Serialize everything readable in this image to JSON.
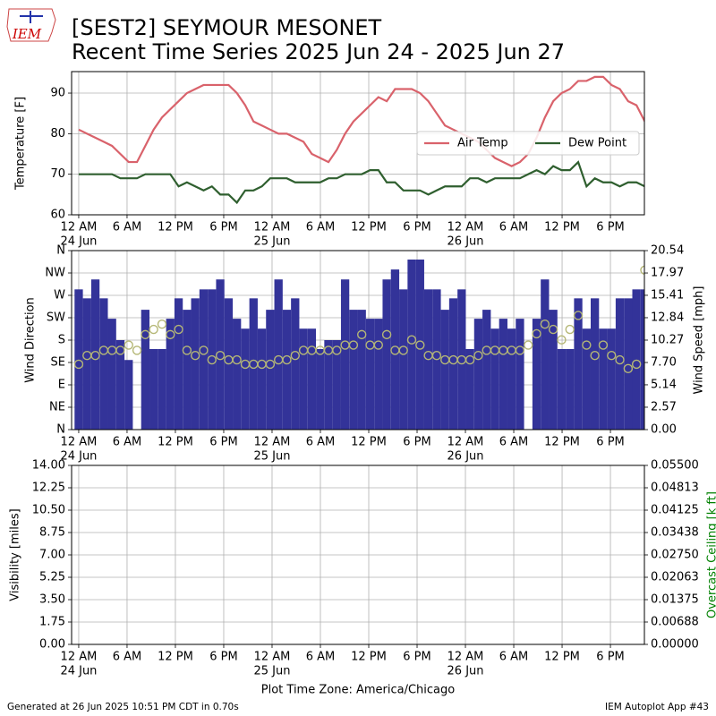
{
  "logo_text": "IEM",
  "title": "[SEST2] SEYMOUR MESONET",
  "subtitle": "Recent Time Series 2025 Jun 24 - 2025 Jun 27",
  "footer_left": "Generated at 26 Jun 2025 10:51 PM CDT in 0.70s",
  "footer_right": "IEM Autoplot App #43",
  "chart_data": [
    {
      "type": "line",
      "x": [
        "2025-06-24T00:00",
        "2025-06-24T01:02",
        "2025-06-24T02:04",
        "2025-06-24T03:06",
        "2025-06-24T04:08",
        "2025-06-24T05:10",
        "2025-06-24T06:12",
        "2025-06-24T07:14",
        "2025-06-24T08:16",
        "2025-06-24T09:18",
        "2025-06-24T10:20",
        "2025-06-24T11:22",
        "2025-06-24T12:24",
        "2025-06-24T13:26",
        "2025-06-24T14:28",
        "2025-06-24T15:30",
        "2025-06-24T16:32",
        "2025-06-24T17:34",
        "2025-06-24T18:36",
        "2025-06-24T19:38",
        "2025-06-24T20:40",
        "2025-06-24T21:42",
        "2025-06-24T22:44",
        "2025-06-24T23:46",
        "2025-06-25T00:48",
        "2025-06-25T01:50",
        "2025-06-25T02:52",
        "2025-06-25T03:54",
        "2025-06-25T04:56",
        "2025-06-25T05:58",
        "2025-06-25T07:00",
        "2025-06-25T08:02",
        "2025-06-25T09:04",
        "2025-06-25T10:06",
        "2025-06-25T11:08",
        "2025-06-25T12:10",
        "2025-06-25T13:12",
        "2025-06-25T14:14",
        "2025-06-25T15:16",
        "2025-06-25T16:18",
        "2025-06-25T17:20",
        "2025-06-25T18:22",
        "2025-06-25T19:24",
        "2025-06-25T20:26",
        "2025-06-25T21:28",
        "2025-06-25T22:30",
        "2025-06-25T23:32",
        "2025-06-26T00:34",
        "2025-06-26T01:36",
        "2025-06-26T02:38",
        "2025-06-26T03:40",
        "2025-06-26T04:42",
        "2025-06-26T05:44",
        "2025-06-26T06:46",
        "2025-06-26T07:48",
        "2025-06-26T08:50",
        "2025-06-26T09:52",
        "2025-06-26T10:54",
        "2025-06-26T11:56",
        "2025-06-26T12:58",
        "2025-06-26T14:00",
        "2025-06-26T15:02",
        "2025-06-26T16:04",
        "2025-06-26T17:06",
        "2025-06-26T18:08",
        "2025-06-26T19:10",
        "2025-06-26T20:12",
        "2025-06-26T21:14",
        "2025-06-26T22:16"
      ],
      "xlim": [
        "2025-06-23T23:07",
        "2025-06-26T22:13"
      ],
      "xticks": [
        {
          "value": "2025-06-24T00:00",
          "label": [
            "12 AM",
            "24 Jun"
          ]
        },
        {
          "value": "2025-06-24T06:00",
          "label": [
            "6 AM"
          ]
        },
        {
          "value": "2025-06-24T12:00",
          "label": [
            "12 PM"
          ]
        },
        {
          "value": "2025-06-24T18:00",
          "label": [
            "6 PM"
          ]
        },
        {
          "value": "2025-06-25T00:00",
          "label": [
            "12 AM",
            "25 Jun"
          ]
        },
        {
          "value": "2025-06-25T06:00",
          "label": [
            "6 AM"
          ]
        },
        {
          "value": "2025-06-25T12:00",
          "label": [
            "12 PM"
          ]
        },
        {
          "value": "2025-06-25T18:00",
          "label": [
            "6 PM"
          ]
        },
        {
          "value": "2025-06-26T00:00",
          "label": [
            "12 AM",
            "26 Jun"
          ]
        },
        {
          "value": "2025-06-26T06:00",
          "label": [
            "6 AM"
          ]
        },
        {
          "value": "2025-06-26T12:00",
          "label": [
            "12 PM"
          ]
        },
        {
          "value": "2025-06-26T18:00",
          "label": [
            "6 PM"
          ]
        }
      ],
      "ylabel": "Temperature [F]",
      "ylim": [
        60,
        95.3
      ],
      "yticks": [
        60,
        70,
        80,
        90
      ],
      "grid": true,
      "legend": "center right",
      "series": [
        {
          "name": "Air Temp",
          "color": "#d9626b",
          "values": [
            81,
            80,
            79,
            78,
            77,
            75,
            73,
            73,
            77,
            81,
            84,
            86,
            88,
            90,
            91,
            92,
            92,
            92,
            92,
            90,
            87,
            83,
            82,
            81,
            80,
            80,
            79,
            78,
            75,
            74,
            73,
            76,
            80,
            83,
            85,
            87,
            89,
            88,
            91,
            91,
            91,
            90,
            88,
            85,
            82,
            81,
            80,
            79,
            78,
            76,
            74,
            73,
            72,
            73,
            75,
            79,
            84,
            88,
            90,
            91,
            93,
            93,
            94,
            94,
            92,
            91,
            88,
            87,
            83
          ]
        },
        {
          "name": "Dew Point",
          "color": "#2f5f2f",
          "values": [
            70,
            70,
            70,
            70,
            70,
            69,
            69,
            69,
            70,
            70,
            70,
            70,
            67,
            68,
            67,
            66,
            67,
            65,
            65,
            63,
            66,
            66,
            67,
            69,
            69,
            69,
            68,
            68,
            68,
            68,
            69,
            69,
            70,
            70,
            70,
            71,
            71,
            68,
            68,
            66,
            66,
            66,
            65,
            66,
            67,
            67,
            67,
            69,
            69,
            68,
            69,
            69,
            69,
            69,
            70,
            71,
            70,
            72,
            71,
            71,
            73,
            67,
            69,
            68,
            68,
            67,
            68,
            68,
            67
          ]
        }
      ]
    },
    {
      "type": "bar",
      "x": [
        "2025-06-24T00:00",
        "2025-06-24T01:02",
        "2025-06-24T02:04",
        "2025-06-24T03:06",
        "2025-06-24T04:08",
        "2025-06-24T05:10",
        "2025-06-24T06:12",
        "2025-06-24T07:14",
        "2025-06-24T08:16",
        "2025-06-24T09:18",
        "2025-06-24T10:20",
        "2025-06-24T11:22",
        "2025-06-24T12:24",
        "2025-06-24T13:26",
        "2025-06-24T14:28",
        "2025-06-24T15:30",
        "2025-06-24T16:32",
        "2025-06-24T17:34",
        "2025-06-24T18:36",
        "2025-06-24T19:38",
        "2025-06-24T20:40",
        "2025-06-24T21:42",
        "2025-06-24T22:44",
        "2025-06-24T23:46",
        "2025-06-25T00:48",
        "2025-06-25T01:50",
        "2025-06-25T02:52",
        "2025-06-25T03:54",
        "2025-06-25T04:56",
        "2025-06-25T05:58",
        "2025-06-25T07:00",
        "2025-06-25T08:02",
        "2025-06-25T09:04",
        "2025-06-25T10:06",
        "2025-06-25T11:08",
        "2025-06-25T12:10",
        "2025-06-25T13:12",
        "2025-06-25T14:14",
        "2025-06-25T15:16",
        "2025-06-25T16:18",
        "2025-06-25T17:20",
        "2025-06-25T18:22",
        "2025-06-25T19:24",
        "2025-06-25T20:26",
        "2025-06-25T21:28",
        "2025-06-25T22:30",
        "2025-06-25T23:32",
        "2025-06-26T00:34",
        "2025-06-26T01:36",
        "2025-06-26T02:38",
        "2025-06-26T03:40",
        "2025-06-26T04:42",
        "2025-06-26T05:44",
        "2025-06-26T06:46",
        "2025-06-26T07:48",
        "2025-06-26T08:50",
        "2025-06-26T09:52",
        "2025-06-26T10:54",
        "2025-06-26T11:56",
        "2025-06-26T12:58",
        "2025-06-26T14:00",
        "2025-06-26T15:02",
        "2025-06-26T16:04",
        "2025-06-26T17:06",
        "2025-06-26T18:08",
        "2025-06-26T19:10",
        "2025-06-26T20:12",
        "2025-06-26T21:14",
        "2025-06-26T22:16"
      ],
      "xlim": [
        "2025-06-23T23:07",
        "2025-06-26T22:13"
      ],
      "xticks": [
        {
          "value": "2025-06-24T00:00",
          "label": [
            "12 AM",
            "24 Jun"
          ]
        },
        {
          "value": "2025-06-24T06:00",
          "label": [
            "6 AM"
          ]
        },
        {
          "value": "2025-06-24T12:00",
          "label": [
            "12 PM"
          ]
        },
        {
          "value": "2025-06-24T18:00",
          "label": [
            "6 PM"
          ]
        },
        {
          "value": "2025-06-25T00:00",
          "label": [
            "12 AM",
            "25 Jun"
          ]
        },
        {
          "value": "2025-06-25T06:00",
          "label": [
            "6 AM"
          ]
        },
        {
          "value": "2025-06-25T12:00",
          "label": [
            "12 PM"
          ]
        },
        {
          "value": "2025-06-25T18:00",
          "label": [
            "6 PM"
          ]
        },
        {
          "value": "2025-06-26T00:00",
          "label": [
            "12 AM",
            "26 Jun"
          ]
        },
        {
          "value": "2025-06-26T06:00",
          "label": [
            "6 AM"
          ]
        },
        {
          "value": "2025-06-26T12:00",
          "label": [
            "12 PM"
          ]
        },
        {
          "value": "2025-06-26T18:00",
          "label": [
            "6 PM"
          ]
        }
      ],
      "ylabel": "Wind Direction",
      "ylim": [
        0,
        360
      ],
      "yticks": [
        {
          "value": 0,
          "label": "N"
        },
        {
          "value": 45,
          "label": "NE"
        },
        {
          "value": 90,
          "label": "E"
        },
        {
          "value": 135,
          "label": "SE"
        },
        {
          "value": 180,
          "label": "S"
        },
        {
          "value": 225,
          "label": "SW"
        },
        {
          "value": 270,
          "label": "W"
        },
        {
          "value": 315,
          "label": "NW"
        },
        {
          "value": 360,
          "label": "N"
        }
      ],
      "y2label": "Wind Speed [mph]",
      "y2lim": [
        0,
        20.54
      ],
      "y2ticks": [
        {
          "value": 0,
          "label": "0.00"
        },
        2.57,
        5.14,
        {
          "value": 7.7,
          "label": "7.70"
        },
        10.27,
        12.84,
        15.41,
        17.97,
        20.54
      ],
      "grid": true,
      "series": [
        {
          "color": "#333399",
          "values": [
            282,
            264,
            302,
            264,
            223,
            180,
            140,
            null,
            241,
            162,
            162,
            223,
            264,
            241,
            264,
            282,
            282,
            302,
            264,
            223,
            203,
            264,
            203,
            241,
            302,
            241,
            264,
            203,
            203,
            162,
            180,
            180,
            302,
            241,
            241,
            223,
            223,
            302,
            322,
            282,
            342,
            342,
            282,
            282,
            241,
            264,
            282,
            162,
            223,
            241,
            203,
            223,
            203,
            223,
            null,
            223,
            302,
            241,
            162,
            162,
            264,
            203,
            264,
            203,
            203,
            264,
            264,
            282,
            282
          ]
        },
        {
          "type": "scatter",
          "axis": "y2",
          "color": "#b5b776",
          "values": [
            7.5,
            8.5,
            8.5,
            9.1,
            9.1,
            9.1,
            9.7,
            9.1,
            10.9,
            11.5,
            12.1,
            10.9,
            11.5,
            9.1,
            8.5,
            9.1,
            8,
            8.5,
            8,
            8,
            7.5,
            7.5,
            7.5,
            7.5,
            8,
            8,
            8.5,
            9.1,
            9.1,
            9.1,
            9.1,
            9.1,
            9.7,
            9.7,
            10.9,
            9.7,
            9.7,
            10.9,
            9.1,
            9.1,
            10.3,
            9.7,
            8.5,
            8.5,
            8,
            8,
            8,
            8,
            8.5,
            9.1,
            9.1,
            9.1,
            9.1,
            9.1,
            9.7,
            11,
            12.1,
            11.5,
            10.3,
            11.5,
            13.1,
            9.7,
            8.5,
            9.7,
            8.5,
            8,
            7,
            7.5,
            18.3
          ]
        }
      ]
    },
    {
      "type": "line",
      "xlim": [
        "2025-06-23T23:07",
        "2025-06-26T22:13"
      ],
      "xticks": [
        {
          "value": "2025-06-24T00:00",
          "label": [
            "12 AM",
            "24 Jun"
          ]
        },
        {
          "value": "2025-06-24T06:00",
          "label": [
            "6 AM"
          ]
        },
        {
          "value": "2025-06-24T12:00",
          "label": [
            "12 PM"
          ]
        },
        {
          "value": "2025-06-24T18:00",
          "label": [
            "6 PM"
          ]
        },
        {
          "value": "2025-06-25T00:00",
          "label": [
            "12 AM",
            "25 Jun"
          ]
        },
        {
          "value": "2025-06-25T06:00",
          "label": [
            "6 AM"
          ]
        },
        {
          "value": "2025-06-25T12:00",
          "label": [
            "12 PM"
          ]
        },
        {
          "value": "2025-06-25T18:00",
          "label": [
            "6 PM"
          ]
        },
        {
          "value": "2025-06-26T00:00",
          "label": [
            "12 AM",
            "26 Jun"
          ]
        },
        {
          "value": "2025-06-26T06:00",
          "label": [
            "6 AM"
          ]
        },
        {
          "value": "2025-06-26T12:00",
          "label": [
            "12 PM"
          ]
        },
        {
          "value": "2025-06-26T18:00",
          "label": [
            "6 PM"
          ]
        }
      ],
      "xlabel": "Plot Time Zone: America/Chicago",
      "ylabel": "Visibility [miles]",
      "ylim": [
        0,
        14
      ],
      "yticks": [
        {
          "value": 0,
          "label": "0.00"
        },
        {
          "value": 1.75,
          "label": "1.75"
        },
        {
          "value": 3.5,
          "label": "3.50"
        },
        {
          "value": 5.25,
          "label": "5.25"
        },
        {
          "value": 7,
          "label": "7.00"
        },
        {
          "value": 8.75,
          "label": "8.75"
        },
        {
          "value": 10.5,
          "label": "10.50"
        },
        {
          "value": 12.25,
          "label": "12.25"
        },
        {
          "value": 14,
          "label": "14.00"
        }
      ],
      "y2label": "Overcast Ceiling [k ft]",
      "y2label_color": "#008000",
      "y2lim": [
        0,
        0.055
      ],
      "y2ticks": [
        {
          "value": 0,
          "label": "0.00000"
        },
        {
          "value": 0.006875,
          "label": "0.00688"
        },
        {
          "value": 0.01375,
          "label": "0.01375"
        },
        {
          "value": 0.020625,
          "label": "0.02063"
        },
        {
          "value": 0.0275,
          "label": "0.02750"
        },
        {
          "value": 0.034375,
          "label": "0.03438"
        },
        {
          "value": 0.04125,
          "label": "0.04125"
        },
        {
          "value": 0.048125,
          "label": "0.04813"
        },
        {
          "value": 0.055,
          "label": "0.05500"
        }
      ],
      "grid": true,
      "series": []
    }
  ]
}
